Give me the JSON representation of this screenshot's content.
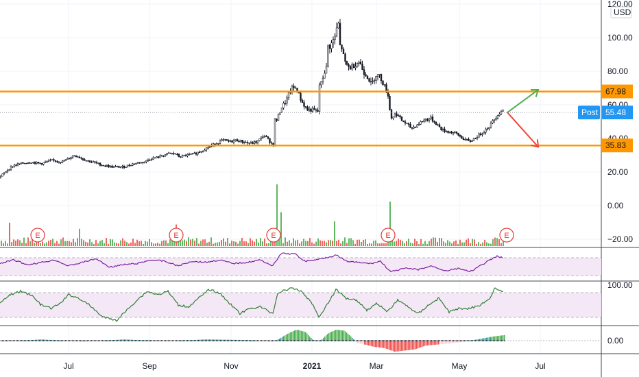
{
  "chart_data": {
    "type": "candlestick",
    "currency": "USD",
    "price_axis": {
      "ticks": [
        "120.00",
        "100.00",
        "80.00",
        "60.00",
        "40.00",
        "20.00",
        "0.00",
        "−20.00"
      ],
      "ylim": [
        -20,
        120
      ]
    },
    "rsi_axis": {
      "ticks": []
    },
    "stoch_axis": {
      "ticks": [
        "100.00"
      ]
    },
    "macd_axis": {
      "ticks": [
        "0.00"
      ]
    },
    "x_ticks": [
      {
        "label": "Jul",
        "bold": false
      },
      {
        "label": "Sep",
        "bold": false
      },
      {
        "label": "Nov",
        "bold": false
      },
      {
        "label": "2021",
        "bold": true
      },
      {
        "label": "Mar",
        "bold": false
      },
      {
        "label": "May",
        "bold": false
      },
      {
        "label": "Jul",
        "bold": false
      }
    ],
    "price_series": [
      [
        0,
        17
      ],
      [
        10,
        21
      ],
      [
        20,
        24
      ],
      [
        30,
        25
      ],
      [
        45,
        26
      ],
      [
        60,
        25
      ],
      [
        75,
        27
      ],
      [
        90,
        26
      ],
      [
        100,
        28
      ],
      [
        108,
        30
      ],
      [
        115,
        29
      ],
      [
        125,
        27
      ],
      [
        135,
        26
      ],
      [
        150,
        24
      ],
      [
        165,
        23
      ],
      [
        180,
        23
      ],
      [
        195,
        25
      ],
      [
        210,
        26
      ],
      [
        220,
        28
      ],
      [
        232,
        29
      ],
      [
        245,
        31
      ],
      [
        255,
        31
      ],
      [
        262,
        29
      ],
      [
        272,
        30
      ],
      [
        285,
        31
      ],
      [
        295,
        33
      ],
      [
        305,
        35
      ],
      [
        315,
        37
      ],
      [
        325,
        39
      ],
      [
        335,
        38
      ],
      [
        345,
        39
      ],
      [
        355,
        38
      ],
      [
        365,
        37
      ],
      [
        375,
        38
      ],
      [
        385,
        42
      ],
      [
        392,
        39
      ],
      [
        398,
        36
      ],
      [
        404,
        51
      ],
      [
        410,
        58
      ],
      [
        418,
        63
      ],
      [
        425,
        70
      ],
      [
        432,
        70
      ],
      [
        440,
        62
      ],
      [
        448,
        57
      ],
      [
        456,
        57
      ],
      [
        462,
        56
      ],
      [
        468,
        72
      ],
      [
        475,
        82
      ],
      [
        482,
        95
      ],
      [
        488,
        100
      ],
      [
        493,
        108
      ],
      [
        498,
        95
      ],
      [
        503,
        85
      ],
      [
        510,
        82
      ],
      [
        517,
        84
      ],
      [
        524,
        86
      ],
      [
        530,
        80
      ],
      [
        536,
        77
      ],
      [
        542,
        72
      ],
      [
        548,
        78
      ],
      [
        554,
        77
      ],
      [
        560,
        72
      ],
      [
        566,
        66
      ],
      [
        570,
        52
      ],
      [
        578,
        55
      ],
      [
        585,
        51
      ],
      [
        592,
        49
      ],
      [
        600,
        46
      ],
      [
        608,
        48
      ],
      [
        618,
        51
      ],
      [
        628,
        52
      ],
      [
        636,
        49
      ],
      [
        645,
        45
      ],
      [
        655,
        44
      ],
      [
        665,
        43
      ],
      [
        675,
        40
      ],
      [
        685,
        38
      ],
      [
        695,
        41
      ],
      [
        705,
        44
      ],
      [
        715,
        48
      ],
      [
        725,
        54
      ],
      [
        733,
        57
      ]
    ],
    "levels": [
      {
        "label": "67.98",
        "value": 67.98,
        "color": "#ff9800"
      },
      {
        "label": "35.83",
        "value": 35.83,
        "color": "#ff9800"
      }
    ],
    "last_price": {
      "label": "Post",
      "value": 55.48,
      "value_label": "55.48",
      "color": "#2196f3"
    },
    "projections": [
      {
        "direction": "up",
        "color": "#4caf50",
        "from": 55.48,
        "to": 69
      },
      {
        "direction": "down",
        "color": "#f44336",
        "from": 55.48,
        "to": 35
      }
    ],
    "earnings_marker": "E",
    "earnings_positions": [
      55,
      257,
      399,
      566,
      739
    ],
    "volume_spikes": [
      {
        "x": 12,
        "h": 0.38
      },
      {
        "x": 115,
        "h": 0.28
      },
      {
        "x": 255,
        "h": 0.35
      },
      {
        "x": 403,
        "h": 1.0
      },
      {
        "x": 408,
        "h": 0.55
      },
      {
        "x": 487,
        "h": 0.4
      },
      {
        "x": 568,
        "h": 0.72
      }
    ],
    "rsi_series": [
      [
        0,
        0.5
      ],
      [
        20,
        0.35
      ],
      [
        40,
        0.55
      ],
      [
        60,
        0.45
      ],
      [
        80,
        0.35
      ],
      [
        100,
        0.6
      ],
      [
        120,
        0.45
      ],
      [
        140,
        0.3
      ],
      [
        160,
        0.65
      ],
      [
        180,
        0.55
      ],
      [
        200,
        0.5
      ],
      [
        220,
        0.35
      ],
      [
        240,
        0.4
      ],
      [
        260,
        0.6
      ],
      [
        280,
        0.4
      ],
      [
        300,
        0.45
      ],
      [
        320,
        0.35
      ],
      [
        340,
        0.5
      ],
      [
        360,
        0.45
      ],
      [
        380,
        0.35
      ],
      [
        398,
        0.6
      ],
      [
        410,
        0.08
      ],
      [
        430,
        0.1
      ],
      [
        445,
        0.4
      ],
      [
        460,
        0.35
      ],
      [
        475,
        0.25
      ],
      [
        490,
        0.15
      ],
      [
        505,
        0.4
      ],
      [
        520,
        0.45
      ],
      [
        540,
        0.5
      ],
      [
        555,
        0.4
      ],
      [
        570,
        0.85
      ],
      [
        590,
        0.7
      ],
      [
        610,
        0.75
      ],
      [
        630,
        0.6
      ],
      [
        650,
        0.8
      ],
      [
        670,
        0.7
      ],
      [
        685,
        0.85
      ],
      [
        700,
        0.6
      ],
      [
        715,
        0.35
      ],
      [
        725,
        0.2
      ],
      [
        735,
        0.25
      ]
    ],
    "stoch_series": [
      [
        0,
        0.45
      ],
      [
        15,
        0.2
      ],
      [
        30,
        0.1
      ],
      [
        45,
        0.2
      ],
      [
        60,
        0.5
      ],
      [
        75,
        0.6
      ],
      [
        88,
        0.45
      ],
      [
        100,
        0.2
      ],
      [
        115,
        0.3
      ],
      [
        130,
        0.5
      ],
      [
        150,
        0.85
      ],
      [
        170,
        0.95
      ],
      [
        185,
        0.65
      ],
      [
        200,
        0.35
      ],
      [
        215,
        0.1
      ],
      [
        230,
        0.2
      ],
      [
        245,
        0.1
      ],
      [
        260,
        0.5
      ],
      [
        275,
        0.55
      ],
      [
        290,
        0.3
      ],
      [
        305,
        0.05
      ],
      [
        320,
        0.15
      ],
      [
        335,
        0.45
      ],
      [
        350,
        0.75
      ],
      [
        365,
        0.6
      ],
      [
        380,
        0.55
      ],
      [
        398,
        0.75
      ],
      [
        405,
        0.15
      ],
      [
        425,
        0.0
      ],
      [
        440,
        0.1
      ],
      [
        455,
        0.45
      ],
      [
        465,
        0.85
      ],
      [
        480,
        0.4
      ],
      [
        490,
        0.05
      ],
      [
        505,
        0.3
      ],
      [
        520,
        0.35
      ],
      [
        535,
        0.65
      ],
      [
        550,
        0.45
      ],
      [
        565,
        0.7
      ],
      [
        580,
        0.35
      ],
      [
        595,
        0.55
      ],
      [
        610,
        0.75
      ],
      [
        625,
        0.5
      ],
      [
        640,
        0.3
      ],
      [
        655,
        0.7
      ],
      [
        670,
        0.6
      ],
      [
        685,
        0.6
      ],
      [
        700,
        0.5
      ],
      [
        715,
        0.3
      ],
      [
        722,
        0.0
      ],
      [
        728,
        0.05
      ],
      [
        735,
        0.15
      ]
    ],
    "macd_series": [
      [
        0,
        -0.1
      ],
      [
        60,
        0.1
      ],
      [
        120,
        -0.1
      ],
      [
        180,
        0.1
      ],
      [
        240,
        -0.05
      ],
      [
        300,
        0.1
      ],
      [
        360,
        0.05
      ],
      [
        398,
        -0.1
      ],
      [
        408,
        0.2
      ],
      [
        420,
        0.6
      ],
      [
        432,
        0.9
      ],
      [
        445,
        0.7
      ],
      [
        455,
        0.1
      ],
      [
        465,
        -0.1
      ],
      [
        478,
        0.6
      ],
      [
        490,
        0.9
      ],
      [
        502,
        0.8
      ],
      [
        512,
        0.3
      ],
      [
        520,
        -0.2
      ],
      [
        530,
        -0.3
      ],
      [
        545,
        -0.5
      ],
      [
        560,
        -0.6
      ],
      [
        575,
        -0.9
      ],
      [
        590,
        -0.8
      ],
      [
        605,
        -0.7
      ],
      [
        620,
        -0.4
      ],
      [
        640,
        -0.3
      ],
      [
        660,
        -0.2
      ],
      [
        675,
        -0.1
      ],
      [
        690,
        0.05
      ],
      [
        705,
        0.2
      ],
      [
        720,
        0.35
      ],
      [
        735,
        0.45
      ]
    ]
  }
}
